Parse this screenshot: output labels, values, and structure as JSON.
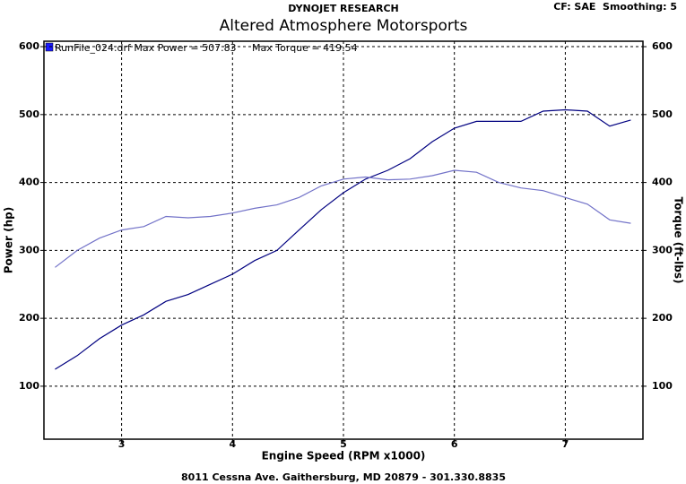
{
  "chart_data": {
    "type": "line",
    "subtitle": "DYNOJET RESEARCH",
    "title": "Altered Atmosphere Motorsports",
    "settings_text": "CF: SAE  Smoothing: 5",
    "legend": "RunFile_024.drf Max Power = 507.83     Max Torque = 419.54",
    "x_label": "Engine Speed (RPM x1000)",
    "y_label": "Power (hp)",
    "y2_label": "Torque (ft-lbs)",
    "footer": "8011 Cessna Ave. Gaithersburg, MD 20879 - 301.330.8835",
    "x": [
      2.4,
      2.6,
      2.8,
      3.0,
      3.2,
      3.4,
      3.6,
      3.8,
      4.0,
      4.2,
      4.4,
      4.6,
      4.8,
      5.0,
      5.2,
      5.4,
      5.6,
      5.8,
      6.0,
      6.2,
      6.4,
      6.6,
      6.8,
      7.0,
      7.2,
      7.4,
      7.59
    ],
    "series": [
      {
        "color": "#000080",
        "values": [
          125,
          145,
          170,
          190,
          205,
          225,
          235,
          250,
          265,
          285,
          300,
          330,
          360,
          385,
          405,
          418,
          435,
          460,
          480,
          490,
          490,
          490,
          505,
          507,
          505,
          483,
          492
        ]
      },
      {
        "color": "#7272c8",
        "axis": "y2",
        "values": [
          275,
          300,
          318,
          330,
          335,
          350,
          348,
          350,
          355,
          362,
          367,
          378,
          395,
          405,
          408,
          404,
          405,
          410,
          418,
          415,
          400,
          392,
          388,
          378,
          368,
          345,
          340
        ]
      }
    ],
    "xlim": [
      2.3,
      7.7
    ],
    "xticks": [
      3,
      4,
      5,
      6,
      7
    ],
    "ylim": [
      22,
      608
    ],
    "yticks": [
      100,
      200,
      300,
      400,
      500,
      600
    ],
    "y2lim": [
      22,
      608
    ],
    "y2ticks": [
      100,
      200,
      300,
      400,
      500,
      600
    ],
    "grid": true
  }
}
